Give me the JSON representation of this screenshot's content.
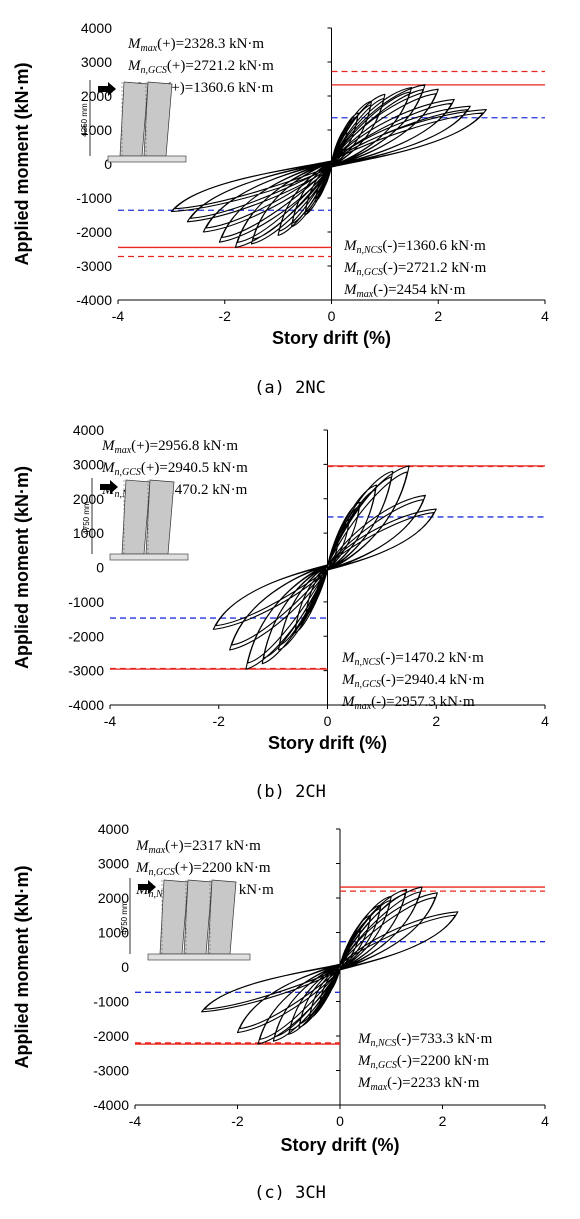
{
  "figure": {
    "panels": [
      {
        "caption": "(a) 2NC",
        "inset_dimension": "4250 mm",
        "col_count": 2,
        "annotations_top": [
          {
            "sym": "M",
            "sub": "max",
            "sign": "(+)",
            "value": "=2328.3 kN·m"
          },
          {
            "sym": "M",
            "sub": "n,GCS",
            "sign": "(+)",
            "value": "=2721.2 kN·m"
          },
          {
            "sym": "M",
            "sub": "n,NCS",
            "sign": "(+)",
            "value": "=1360.6 kN·m"
          }
        ],
        "annotations_bottom": [
          {
            "sym": "M",
            "sub": "n,NCS",
            "sign": "(-)",
            "value": "=1360.6 kN·m"
          },
          {
            "sym": "M",
            "sub": "n,GCS",
            "sign": "(-)",
            "value": "=2721.2 kN·m"
          },
          {
            "sym": "M",
            "sub": "max",
            "sign": "(-)",
            "value": "=2454 kN·m"
          }
        ]
      },
      {
        "caption": "(b) 2CH",
        "inset_dimension": "4750 mm",
        "col_count": 2,
        "annotations_top": [
          {
            "sym": "M",
            "sub": "max",
            "sign": "(+)",
            "value": "=2956.8 kN·m"
          },
          {
            "sym": "M",
            "sub": "n,GCS",
            "sign": "(+)",
            "value": "=2940.5 kN·m"
          },
          {
            "sym": "M",
            "sub": "n,NCS",
            "sign": "(+)",
            "value": "=1470.2 kN·m"
          }
        ],
        "annotations_bottom": [
          {
            "sym": "M",
            "sub": "n,NCS",
            "sign": "(-)",
            "value": "=1470.2 kN·m"
          },
          {
            "sym": "M",
            "sub": "n,GCS",
            "sign": "(-)",
            "value": "=2940.4 kN·m"
          },
          {
            "sym": "M",
            "sub": "max",
            "sign": "(-)",
            "value": "=2957.3 kN·m"
          }
        ]
      },
      {
        "caption": "(c) 3CH",
        "inset_dimension": "4750 mm",
        "col_count": 3,
        "annotations_top": [
          {
            "sym": "M",
            "sub": "max",
            "sign": "(+)",
            "value": "=2317 kN·m"
          },
          {
            "sym": "M",
            "sub": "n,GCS",
            "sign": "(+)",
            "value": "=2200 kN·m"
          },
          {
            "sym": "M",
            "sub": "n,NCS",
            "sign": "(+)",
            "value": "=733.3 kN·m"
          }
        ],
        "annotations_bottom": [
          {
            "sym": "M",
            "sub": "n,NCS",
            "sign": "(-)",
            "value": "=733.3 kN·m"
          },
          {
            "sym": "M",
            "sub": "n,GCS",
            "sign": "(-)",
            "value": "=2200 kN·m"
          },
          {
            "sym": "M",
            "sub": "max",
            "sign": "(-)",
            "value": "=2233 kN·m"
          }
        ]
      }
    ]
  },
  "colors": {
    "curve": "#000000",
    "max_line": "#e8261f",
    "gcs_line": "#e8261f",
    "ncs_line": "#2233dd",
    "inset_column": "#c8c8c8"
  },
  "chart_data": [
    {
      "type": "line",
      "title": "",
      "xlabel": "Story drift (%)",
      "ylabel": "Applied  moment  (kN·m)",
      "xlim": [
        -4,
        4
      ],
      "ylim": [
        -4000,
        4000
      ],
      "xticks": [
        -4,
        -2,
        0,
        2,
        4
      ],
      "yticks": [
        4000,
        3000,
        2000,
        1000,
        0,
        -1000,
        -2000,
        -3000,
        -4000
      ],
      "grid": false,
      "reference_lines": [
        {
          "name": "Mmax(+)",
          "y": 2328.3,
          "style": "solid",
          "color": "red",
          "x_from": 0,
          "x_to": 4
        },
        {
          "name": "Mn,GCS(+)",
          "y": 2721.2,
          "style": "dashed",
          "color": "red",
          "x_from": 0,
          "x_to": 4
        },
        {
          "name": "Mn,NCS(+)",
          "y": 1360.6,
          "style": "dashed",
          "color": "blue",
          "x_from": 0,
          "x_to": 4
        },
        {
          "name": "Mmax(-)",
          "y": -2454,
          "style": "solid",
          "color": "red",
          "x_from": -4,
          "x_to": 0
        },
        {
          "name": "Mn,GCS(-)",
          "y": -2721.2,
          "style": "dashed",
          "color": "red",
          "x_from": -4,
          "x_to": 0
        },
        {
          "name": "Mn,NCS(-)",
          "y": -1360.6,
          "style": "dashed",
          "color": "blue",
          "x_from": -4,
          "x_to": 0
        }
      ],
      "hysteresis": {
        "peaks": [
          0.15,
          0.3,
          0.5,
          0.75,
          1.0,
          1.5,
          1.75,
          2.0,
          2.3,
          2.6,
          2.9
        ],
        "pos_loads": [
          700,
          1100,
          1500,
          1850,
          2050,
          2250,
          2328,
          2200,
          1900,
          1700,
          1600
        ],
        "neg_peaks": [
          -0.15,
          -0.3,
          -0.5,
          -0.75,
          -1.0,
          -1.5,
          -1.8,
          -2.1,
          -2.4,
          -2.7,
          -3.0
        ],
        "neg_loads": [
          -700,
          -1100,
          -1500,
          -1850,
          -2100,
          -2350,
          -2454,
          -2300,
          -2000,
          -1700,
          -1400
        ],
        "pinch_m": 300
      }
    },
    {
      "type": "line",
      "title": "",
      "xlabel": "Story drift (%)",
      "ylabel": "Applied  moment  (kN·m)",
      "xlim": [
        -4,
        4
      ],
      "ylim": [
        -4000,
        4000
      ],
      "xticks": [
        -4,
        -2,
        0,
        2,
        4
      ],
      "yticks": [
        4000,
        3000,
        2000,
        1000,
        0,
        -1000,
        -2000,
        -3000,
        -4000
      ],
      "grid": false,
      "reference_lines": [
        {
          "name": "Mmax(+)",
          "y": 2956.8,
          "style": "solid",
          "color": "red",
          "x_from": 0,
          "x_to": 4
        },
        {
          "name": "Mn,GCS(+)",
          "y": 2940.5,
          "style": "dashed",
          "color": "red",
          "x_from": 0,
          "x_to": 4
        },
        {
          "name": "Mn,NCS(+)",
          "y": 1470.2,
          "style": "dashed",
          "color": "blue",
          "x_from": 0,
          "x_to": 4
        },
        {
          "name": "Mmax(-)",
          "y": -2957.3,
          "style": "solid",
          "color": "red",
          "x_from": -4,
          "x_to": 0
        },
        {
          "name": "Mn,GCS(-)",
          "y": -2940.4,
          "style": "dashed",
          "color": "red",
          "x_from": -4,
          "x_to": 0
        },
        {
          "name": "Mn,NCS(-)",
          "y": -1470.2,
          "style": "dashed",
          "color": "blue",
          "x_from": -4,
          "x_to": 0
        }
      ],
      "hysteresis": {
        "peaks": [
          0.2,
          0.4,
          0.6,
          0.9,
          1.2,
          1.5,
          1.8,
          2.0
        ],
        "pos_loads": [
          800,
          1400,
          1900,
          2400,
          2800,
          2957,
          2100,
          1700
        ],
        "neg_peaks": [
          -0.2,
          -0.4,
          -0.6,
          -0.9,
          -1.2,
          -1.5,
          -1.8,
          -2.1
        ],
        "neg_loads": [
          -800,
          -1400,
          -1900,
          -2400,
          -2800,
          -2957,
          -2400,
          -1800
        ],
        "pinch_m": 250
      }
    },
    {
      "type": "line",
      "title": "",
      "xlabel": "Story drift (%)",
      "ylabel": "Applied  moment  (kN·m)",
      "xlim": [
        -4,
        4
      ],
      "ylim": [
        -4000,
        4000
      ],
      "xticks": [
        -4,
        -2,
        0,
        2,
        4
      ],
      "yticks": [
        4000,
        3000,
        2000,
        1000,
        0,
        -1000,
        -2000,
        -3000,
        -4000
      ],
      "grid": false,
      "reference_lines": [
        {
          "name": "Mmax(+)",
          "y": 2317,
          "style": "solid",
          "color": "red",
          "x_from": 0,
          "x_to": 4
        },
        {
          "name": "Mn,GCS(+)",
          "y": 2200,
          "style": "dashed",
          "color": "red",
          "x_from": 0,
          "x_to": 4
        },
        {
          "name": "Mn,NCS(+)",
          "y": 733.3,
          "style": "dashed",
          "color": "blue",
          "x_from": 0,
          "x_to": 4
        },
        {
          "name": "Mmax(-)",
          "y": -2233,
          "style": "solid",
          "color": "red",
          "x_from": -4,
          "x_to": 0
        },
        {
          "name": "Mn,GCS(-)",
          "y": -2200,
          "style": "dashed",
          "color": "red",
          "x_from": -4,
          "x_to": 0
        },
        {
          "name": "Mn,NCS(-)",
          "y": -733.3,
          "style": "dashed",
          "color": "blue",
          "x_from": -4,
          "x_to": 0
        }
      ],
      "hysteresis": {
        "peaks": [
          0.2,
          0.4,
          0.6,
          0.8,
          1.0,
          1.3,
          1.6,
          1.9,
          2.3
        ],
        "pos_loads": [
          700,
          1100,
          1500,
          1800,
          2050,
          2250,
          2317,
          2150,
          1600
        ],
        "neg_peaks": [
          -0.2,
          -0.4,
          -0.6,
          -0.8,
          -1.0,
          -1.3,
          -1.6,
          -2.0,
          -2.7
        ],
        "neg_loads": [
          -700,
          -1100,
          -1500,
          -1750,
          -1950,
          -2150,
          -2233,
          -1900,
          -1300
        ],
        "pinch_m": 280
      }
    }
  ]
}
